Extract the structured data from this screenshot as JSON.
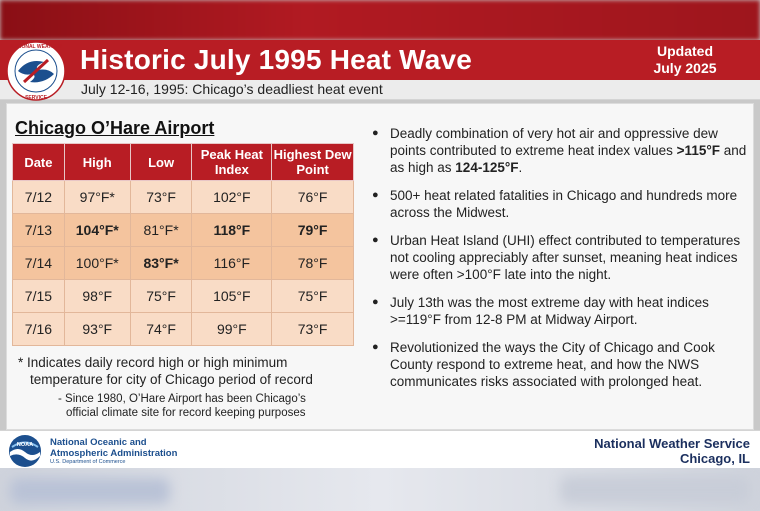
{
  "header": {
    "title": "Historic July 1995 Heat Wave",
    "updated_line1": "Updated",
    "updated_line2": "July 2025",
    "subtitle": "July 12-16, 1995: Chicago’s deadliest heat event"
  },
  "logos": {
    "nws_logo_text": "NATIONAL WEATHER SERVICE",
    "noaa_logo_text": "NOAA"
  },
  "table": {
    "heading": "Chicago O’Hare Airport",
    "columns": [
      "Date",
      "High",
      "Low",
      "Peak Heat Index",
      "Highest Dew Point"
    ],
    "rows": [
      {
        "date": "7/12",
        "high": "97°F*",
        "low": "73°F",
        "peak_hi": "102°F",
        "dew": "76°F"
      },
      {
        "date": "7/13",
        "high": "104°F*",
        "low": "81°F*",
        "peak_hi": "118°F",
        "dew": "79°F"
      },
      {
        "date": "7/14",
        "high": "100°F*",
        "low": "83°F*",
        "peak_hi": "116°F",
        "dew": "78°F"
      },
      {
        "date": "7/15",
        "high": "98°F",
        "low": "75°F",
        "peak_hi": "105°F",
        "dew": "75°F"
      },
      {
        "date": "7/16",
        "high": "93°F",
        "low": "74°F",
        "peak_hi": "99°F",
        "dew": "73°F"
      }
    ]
  },
  "notes": {
    "record_line1": "* Indicates daily record high or high minimum",
    "record_line2": "temperature for city of Chicago period of record",
    "sub_line1": "- Since 1980, O’Hare Airport has been Chicago’s",
    "sub_line2": "official climate site for record keeping purposes"
  },
  "bullets": {
    "b1_pre": "Deadly combination of very hot air and oppressive dew points contributed to extreme heat index values ",
    "b1_bold1": ">115°F",
    "b1_mid": " and as high as ",
    "b1_bold2": "124-125°F",
    "b1_post": ".",
    "b2": "500+ heat related fatalities in Chicago and hundreds more across the Midwest.",
    "b3": "Urban Heat Island (UHI) effect contributed to temperatures not cooling appreciably after sunset, meaning heat indices were often >100°F late into the night.",
    "b4": "July 13th was the most extreme day with heat indices >=119°F from 12-8 PM at Midway Airport.",
    "b5": "Revolutionized the ways the City of Chicago and Cook County respond to extreme heat, and how the NWS communicates risks associated with prolonged heat."
  },
  "footer": {
    "noaa_line1": "National Oceanic and",
    "noaa_line2": "Atmospheric Administration",
    "noaa_dept": "U.S. Department of Commerce",
    "nws_line1": "National Weather Service",
    "nws_line2": "Chicago, IL"
  },
  "colors": {
    "banner_red": "#b81d24",
    "row_light": "#f9dcc6",
    "row_dark": "#f4c49e",
    "noaa_blue": "#1c4f8e",
    "nws_navy": "#1b2f5e"
  }
}
